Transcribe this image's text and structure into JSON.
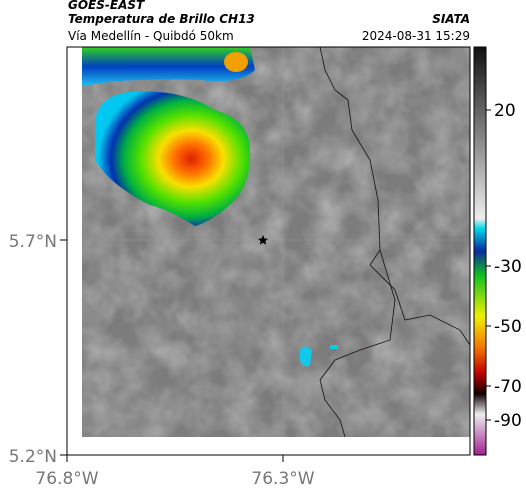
{
  "header": {
    "title": "GOES-EAST",
    "subtitle": "Temperatura de Brillo CH13",
    "route": "Vía Medellín - Quibdó 50km",
    "source": "SIATA",
    "timestamp": "2024-08-31 15:29"
  },
  "map": {
    "lat_labels": [
      "5.7°N",
      "5.2°N"
    ],
    "lon_labels": [
      "76.8°W",
      "76.3°W"
    ]
  },
  "colorbar": {
    "ticks": [
      20,
      -30,
      -50,
      -70,
      -90
    ]
  }
}
